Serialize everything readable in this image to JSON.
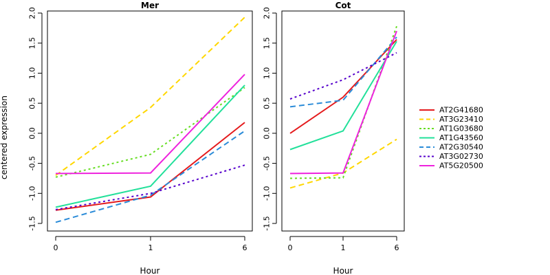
{
  "chart_data": {
    "type": "line",
    "ylabel": "centered expression",
    "xlabel": "Hour",
    "x_categories": [
      "0",
      "1",
      "6"
    ],
    "ylim": [
      -1.5,
      2.0
    ],
    "yticks": [
      "-1.5",
      "-1.0",
      "-0.5",
      "0.0",
      "0.5",
      "1.0",
      "1.5",
      "2.0"
    ],
    "legend_position": "right",
    "series": [
      {
        "name": "AT2G41680",
        "color": "#e41a1c",
        "dash": "solid"
      },
      {
        "name": "AT3G23410",
        "color": "#ffd700",
        "dash": "dashed"
      },
      {
        "name": "AT1G03680",
        "color": "#66dd22",
        "dash": "dotted"
      },
      {
        "name": "AT1G43560",
        "color": "#22e09a",
        "dash": "solid"
      },
      {
        "name": "AT2G30540",
        "color": "#2a8bd8",
        "dash": "dashed"
      },
      {
        "name": "AT3G02730",
        "color": "#5500cc",
        "dash": "dotted"
      },
      {
        "name": "AT5G20500",
        "color": "#ee22dd",
        "dash": "solid"
      }
    ],
    "panels": [
      {
        "title": "Mer",
        "values": [
          [
            -1.28,
            -1.06,
            0.18
          ],
          [
            -0.7,
            0.43,
            1.93
          ],
          [
            -0.73,
            -0.35,
            0.76
          ],
          [
            -1.23,
            -0.88,
            0.8
          ],
          [
            -1.48,
            -1.03,
            0.04
          ],
          [
            -1.27,
            -1.0,
            -0.53
          ],
          [
            -0.67,
            -0.66,
            0.98
          ]
        ]
      },
      {
        "title": "Cot",
        "values": [
          [
            0.0,
            0.6,
            1.56
          ],
          [
            -0.91,
            -0.66,
            -0.1
          ],
          [
            -0.75,
            -0.74,
            1.78
          ],
          [
            -0.27,
            0.04,
            1.53
          ],
          [
            0.44,
            0.55,
            1.6
          ],
          [
            0.57,
            0.89,
            1.34
          ],
          [
            -0.67,
            -0.66,
            1.7
          ]
        ]
      }
    ]
  }
}
